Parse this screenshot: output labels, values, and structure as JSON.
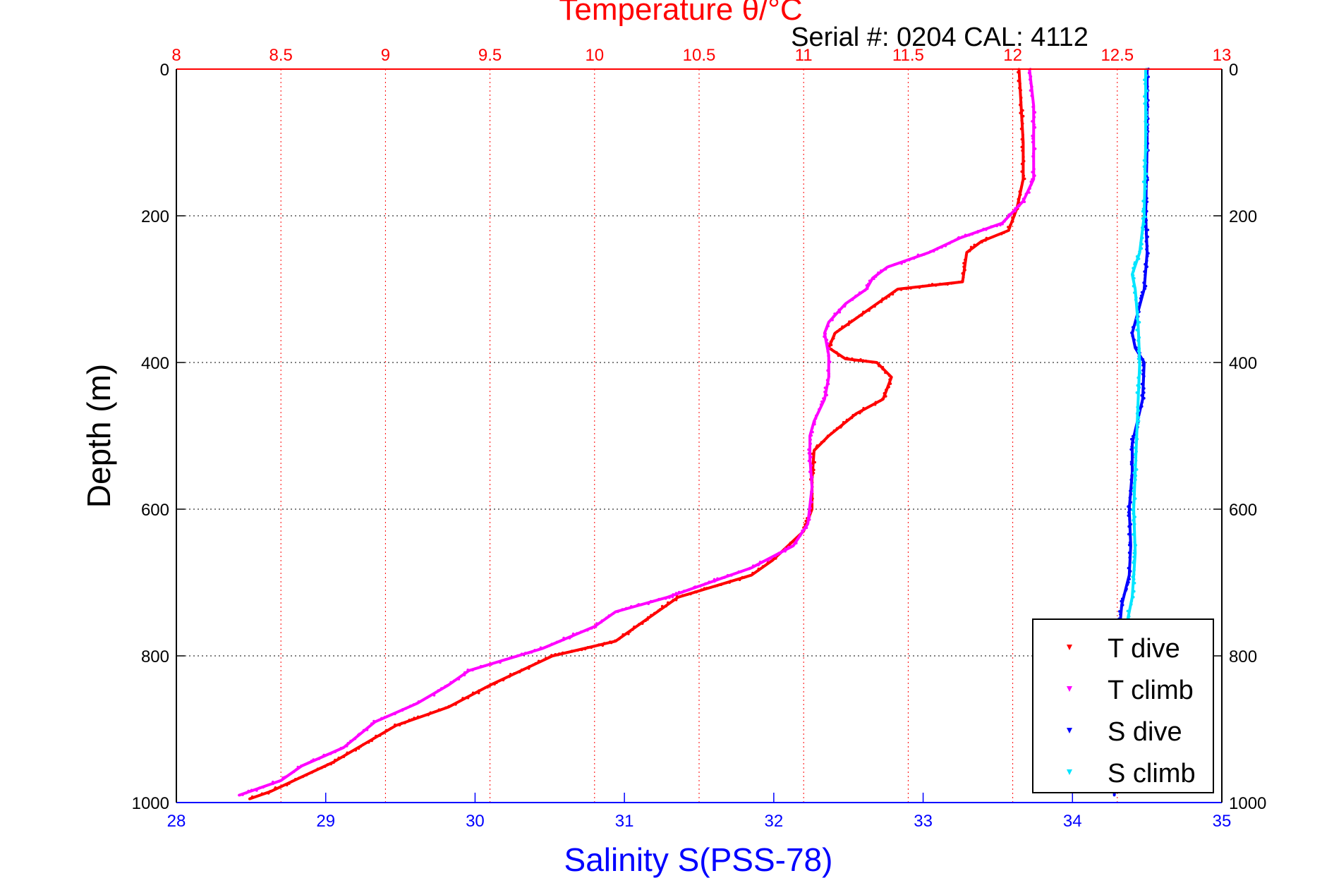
{
  "chart_data": {
    "type": "scatter",
    "title": "Temperature θ/°C",
    "subtitle": "Serial #: 0204  CAL: 4112",
    "ylabel": "Depth (m)",
    "xlabel": "Salinity S(PSS-78)",
    "ylim": [
      1000,
      0
    ],
    "y_ticks": [
      "0",
      "200",
      "400",
      "600",
      "800",
      "1000"
    ],
    "x_top": {
      "label": "Temperature θ/°C",
      "range": [
        8,
        13
      ],
      "ticks": [
        "8",
        "8.5",
        "9",
        "9.5",
        "10",
        "10.5",
        "11",
        "11.5",
        "12",
        "12.5",
        "13"
      ],
      "color": "#ff0000"
    },
    "x_bottom": {
      "label": "Salinity S(PSS-78)",
      "range": [
        28,
        35
      ],
      "ticks": [
        "28",
        "29",
        "30",
        "31",
        "32",
        "33",
        "34",
        "35"
      ],
      "color": "#0000ff"
    },
    "grid": true,
    "legend": "bottom-right",
    "series": [
      {
        "name": "T dive",
        "axis": "temperature",
        "color": "#ff0000",
        "points": [
          [
            12.03,
            0
          ],
          [
            12.04,
            50
          ],
          [
            12.05,
            100
          ],
          [
            12.05,
            150
          ],
          [
            12.02,
            190
          ],
          [
            11.98,
            220
          ],
          [
            11.85,
            235
          ],
          [
            11.78,
            250
          ],
          [
            11.76,
            290
          ],
          [
            11.45,
            300
          ],
          [
            11.35,
            320
          ],
          [
            11.25,
            340
          ],
          [
            11.15,
            360
          ],
          [
            11.12,
            380
          ],
          [
            11.2,
            395
          ],
          [
            11.35,
            400
          ],
          [
            11.42,
            420
          ],
          [
            11.38,
            450
          ],
          [
            11.25,
            470
          ],
          [
            11.12,
            500
          ],
          [
            11.05,
            520
          ],
          [
            11.04,
            560
          ],
          [
            11.04,
            600
          ],
          [
            11.0,
            630
          ],
          [
            10.85,
            670
          ],
          [
            10.75,
            690
          ],
          [
            10.4,
            720
          ],
          [
            10.25,
            750
          ],
          [
            10.1,
            780
          ],
          [
            9.8,
            800
          ],
          [
            9.5,
            840
          ],
          [
            9.3,
            870
          ],
          [
            9.05,
            895
          ],
          [
            8.9,
            920
          ],
          [
            8.75,
            945
          ],
          [
            8.6,
            965
          ],
          [
            8.45,
            985
          ],
          [
            8.35,
            995
          ]
        ]
      },
      {
        "name": "T climb",
        "axis": "temperature",
        "color": "#ff00ff",
        "points": [
          [
            12.08,
            0
          ],
          [
            12.1,
            50
          ],
          [
            12.1,
            100
          ],
          [
            12.1,
            150
          ],
          [
            12.05,
            180
          ],
          [
            11.95,
            210
          ],
          [
            11.75,
            230
          ],
          [
            11.6,
            250
          ],
          [
            11.4,
            270
          ],
          [
            11.33,
            285
          ],
          [
            11.3,
            300
          ],
          [
            11.2,
            320
          ],
          [
            11.12,
            345
          ],
          [
            11.1,
            360
          ],
          [
            11.12,
            390
          ],
          [
            11.12,
            420
          ],
          [
            11.1,
            450
          ],
          [
            11.05,
            480
          ],
          [
            11.03,
            500
          ],
          [
            11.03,
            530
          ],
          [
            11.04,
            570
          ],
          [
            11.02,
            620
          ],
          [
            10.95,
            650
          ],
          [
            10.75,
            680
          ],
          [
            10.55,
            700
          ],
          [
            10.35,
            720
          ],
          [
            10.1,
            740
          ],
          [
            10.0,
            760
          ],
          [
            9.75,
            790
          ],
          [
            9.4,
            820
          ],
          [
            9.3,
            840
          ],
          [
            9.15,
            865
          ],
          [
            8.95,
            890
          ],
          [
            8.8,
            925
          ],
          [
            8.6,
            950
          ],
          [
            8.5,
            970
          ],
          [
            8.3,
            990
          ]
        ]
      },
      {
        "name": "S dive",
        "axis": "salinity",
        "color": "#0000ff",
        "points": [
          [
            34.5,
            0
          ],
          [
            34.5,
            100
          ],
          [
            34.49,
            200
          ],
          [
            34.5,
            250
          ],
          [
            34.48,
            300
          ],
          [
            34.4,
            360
          ],
          [
            34.42,
            380
          ],
          [
            34.48,
            400
          ],
          [
            34.47,
            450
          ],
          [
            34.4,
            510
          ],
          [
            34.4,
            550
          ],
          [
            34.38,
            600
          ],
          [
            34.39,
            650
          ],
          [
            34.38,
            690
          ],
          [
            34.33,
            730
          ],
          [
            34.3,
            800
          ],
          [
            34.3,
            900
          ],
          [
            34.28,
            990
          ]
        ]
      },
      {
        "name": "S climb",
        "axis": "salinity",
        "color": "#00e5ff",
        "points": [
          [
            34.49,
            0
          ],
          [
            34.49,
            100
          ],
          [
            34.48,
            200
          ],
          [
            34.45,
            250
          ],
          [
            34.4,
            280
          ],
          [
            34.42,
            300
          ],
          [
            34.44,
            350
          ],
          [
            34.45,
            400
          ],
          [
            34.44,
            450
          ],
          [
            34.43,
            500
          ],
          [
            34.42,
            550
          ],
          [
            34.41,
            600
          ],
          [
            34.42,
            660
          ],
          [
            34.4,
            720
          ],
          [
            34.36,
            760
          ],
          [
            34.33,
            820
          ],
          [
            34.32,
            900
          ],
          [
            34.33,
            980
          ]
        ]
      }
    ]
  }
}
